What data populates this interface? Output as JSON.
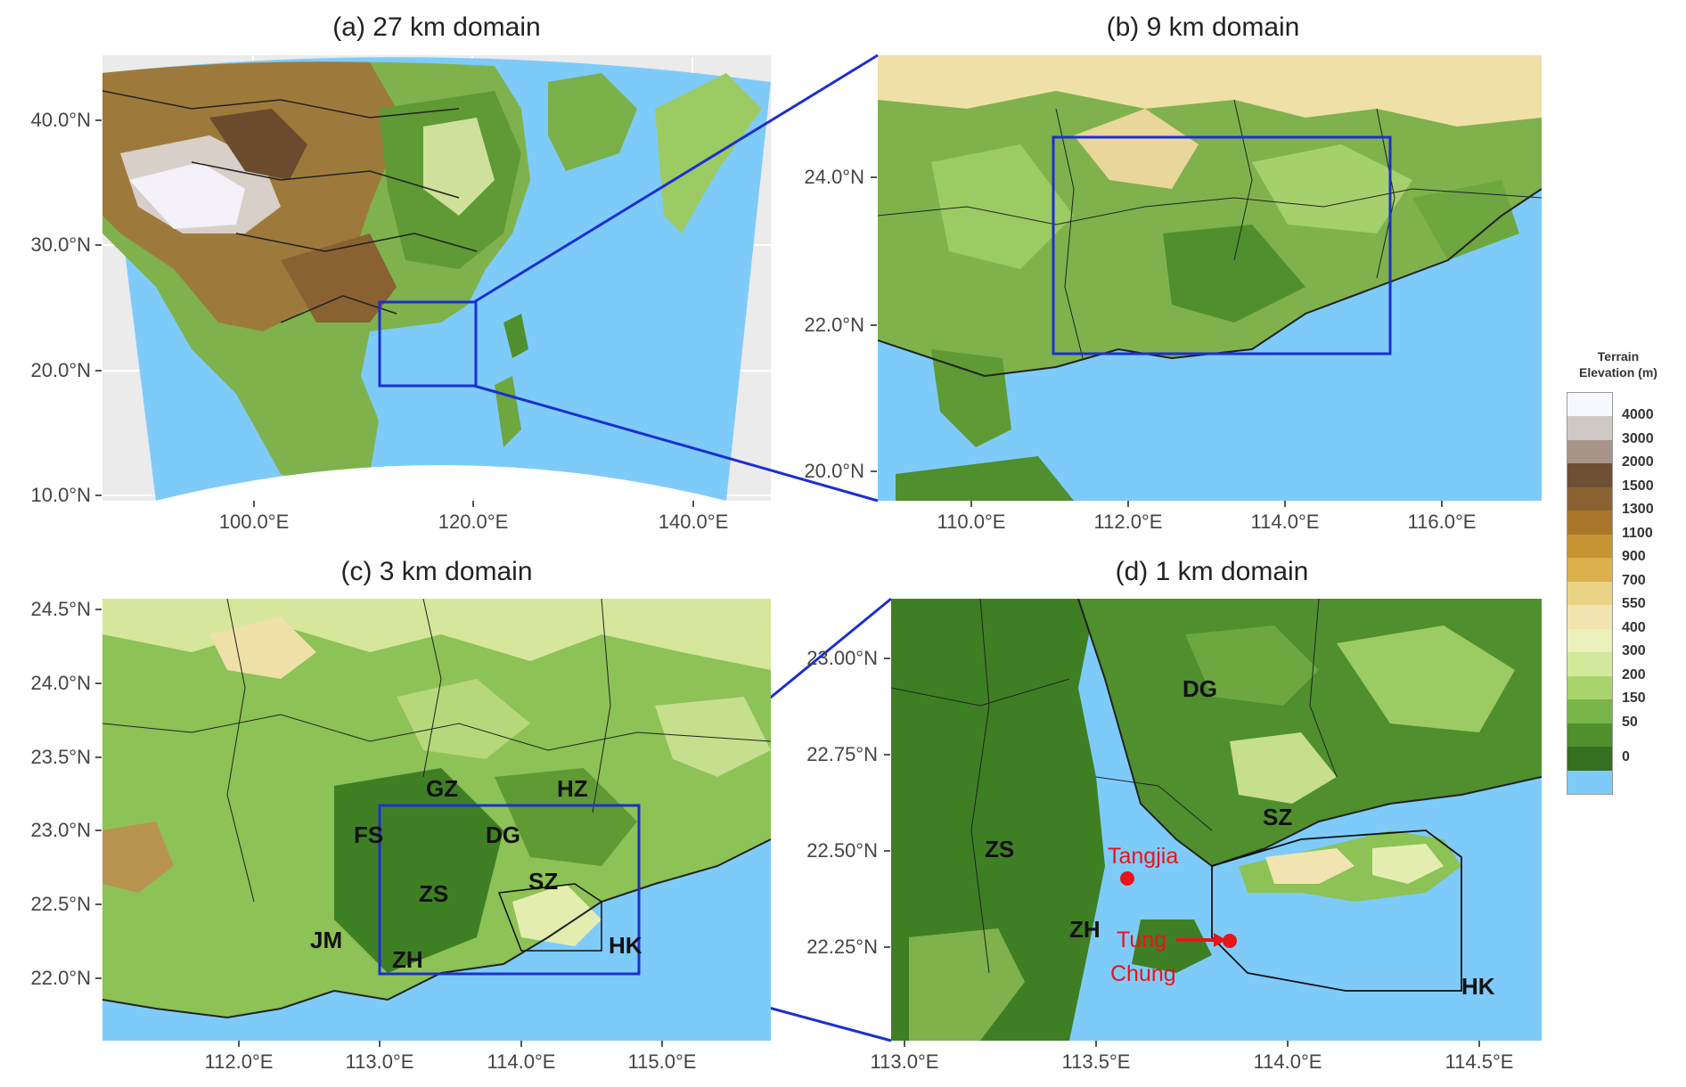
{
  "panels": {
    "a": {
      "title": "(a) 27 km domain",
      "yticks": [
        "40.0°N",
        "30.0°N",
        "20.0°N",
        "10.0°N"
      ],
      "xticks": [
        "100.0°E",
        "120.0°E",
        "140.0°E"
      ]
    },
    "b": {
      "title": "(b) 9 km domain",
      "yticks": [
        "24.0°N",
        "22.0°N",
        "20.0°N"
      ],
      "xticks": [
        "110.0°E",
        "112.0°E",
        "114.0°E",
        "116.0°E"
      ]
    },
    "c": {
      "title": "(c) 3 km domain",
      "yticks": [
        "24.5°N",
        "24.0°N",
        "23.5°N",
        "23.0°N",
        "22.5°N",
        "22.0°N"
      ],
      "xticks": [
        "112.0°E",
        "113.0°E",
        "114.0°E",
        "115.0°E"
      ],
      "regions": [
        "GZ",
        "HZ",
        "FS",
        "DG",
        "ZS",
        "SZ",
        "JM",
        "ZH",
        "HK"
      ]
    },
    "d": {
      "title": "(d) 1 km domain",
      "yticks": [
        "23.00°N",
        "22.75°N",
        "22.50°N",
        "22.25°N"
      ],
      "xticks": [
        "113.0°E",
        "113.5°E",
        "114.0°E",
        "114.5°E"
      ],
      "regions": [
        "DG",
        "ZS",
        "SZ",
        "ZH",
        "HK"
      ],
      "sites": [
        "Tangjia",
        "Tung",
        "Chung"
      ]
    }
  },
  "legend": {
    "title_line1": "Terrain",
    "title_line2": "Elevation (m)",
    "labels": [
      "4000",
      "3000",
      "2000",
      "1500",
      "1300",
      "1100",
      "900",
      "700",
      "550",
      "400",
      "300",
      "200",
      "150",
      "50",
      "0"
    ],
    "colors": [
      "#f8f8ff",
      "#d0c8c4",
      "#a89488",
      "#6e4f34",
      "#8a6232",
      "#a9772c",
      "#c79533",
      "#dcb04c",
      "#ead386",
      "#f2e4b0",
      "#ecf0ba",
      "#d2e89b",
      "#a9d46c",
      "#78b44a",
      "#4f8f2e",
      "#356f1f",
      "#7ecbfa"
    ]
  },
  "colors": {
    "domain_box": "#1c2fd1",
    "ocean": "#7ecbfa",
    "site_marker": "#e8141b"
  }
}
